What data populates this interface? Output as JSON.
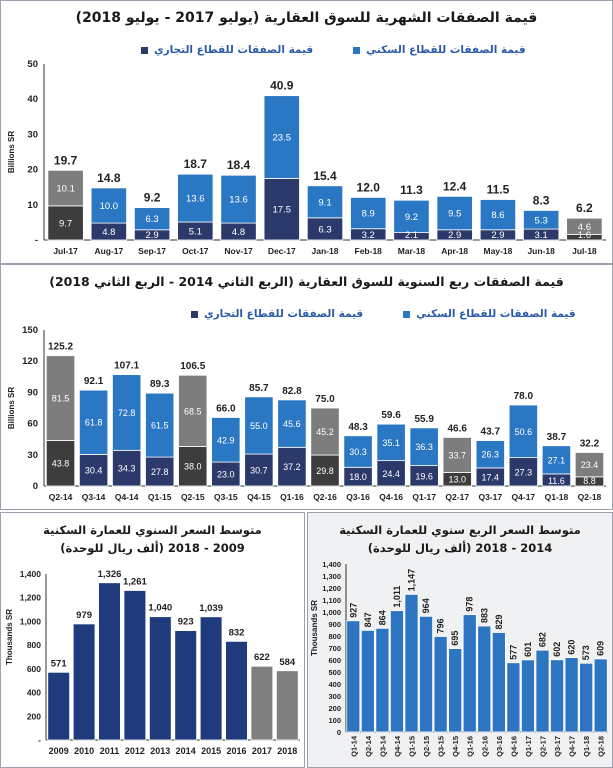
{
  "colors": {
    "commercial": "#2b3a6b",
    "residential": "#2a78c4",
    "other": "#7d7d7d",
    "navy": "#1f3b7e",
    "blue": "#2d74c1",
    "grey_bar": "#7f7f7f"
  },
  "chart_data": [
    {
      "type": "bar",
      "stacked": true,
      "title": "قيمة الصفقات الشهرية للسوق العقارية (يوليو 2017 - يوليو 2018)",
      "ylabel": "Billions SR",
      "ylim": [
        0,
        50
      ],
      "yticks": [
        "-",
        "10",
        "20",
        "30",
        "40",
        "50"
      ],
      "legend": [
        "قيمة الصفقات للقطاع التجاري",
        "قيمة الصفقات للقطاع السكني"
      ],
      "categories": [
        "Jul-17",
        "Aug-17",
        "Sep-17",
        "Oct-17",
        "Nov-17",
        "Dec-17",
        "Jan-18",
        "Feb-18",
        "Mar-18",
        "Apr-18",
        "May-18",
        "Jun-18",
        "Jul-18"
      ],
      "totals": [
        19.7,
        14.8,
        9.2,
        18.7,
        18.4,
        40.9,
        15.4,
        12.0,
        11.3,
        12.4,
        11.5,
        8.3,
        6.2
      ],
      "totals_label": [
        "19.7",
        "14.8",
        "9.2",
        "18.7",
        "18.4",
        "40.9",
        "15.4",
        "12.0",
        "11.3",
        "12.4",
        "11.5",
        "8.3",
        "6.2"
      ],
      "series": [
        {
          "name": "قيمة الصفقات للقطاع التجاري",
          "values": [
            9.7,
            4.8,
            2.9,
            5.1,
            4.8,
            17.5,
            6.3,
            3.2,
            2.1,
            2.9,
            2.9,
            3.1,
            1.6
          ]
        },
        {
          "name": "قيمة الصفقات للقطاع السكني",
          "values": [
            10.1,
            10.0,
            6.3,
            13.6,
            13.6,
            23.5,
            9.1,
            8.9,
            9.2,
            9.5,
            8.6,
            5.3,
            4.6
          ]
        }
      ],
      "grey_categories": [
        "Jul-17",
        "Jul-18"
      ]
    },
    {
      "type": "bar",
      "stacked": true,
      "title": "قيمة الصفقات ربع السنوية للسوق العقارية (الربع الثاني 2014 - الربع الثاني 2018)",
      "ylabel": "Billions SR",
      "ylim": [
        0,
        150
      ],
      "yticks": [
        "0",
        "30",
        "60",
        "90",
        "120",
        "150"
      ],
      "legend": [
        "قيمة الصفقات للقطاع التجاري",
        "قيمة الصفقات للقطاع السكني"
      ],
      "categories": [
        "Q2-14",
        "Q3-14",
        "Q4-14",
        "Q1-15",
        "Q2-15",
        "Q3-15",
        "Q4-15",
        "Q1-16",
        "Q2-16",
        "Q3-16",
        "Q4-16",
        "Q1-17",
        "Q2-17",
        "Q3-17",
        "Q4-17",
        "Q1-18",
        "Q2-18"
      ],
      "totals": [
        125.2,
        92.1,
        107.1,
        89.3,
        106.5,
        66.0,
        85.7,
        82.8,
        75.0,
        48.3,
        59.6,
        55.9,
        46.6,
        43.7,
        78.0,
        38.7,
        32.2
      ],
      "totals_label": [
        "125.2",
        "92.1",
        "107.1",
        "89.3",
        "106.5",
        "66.0",
        "85.7",
        "82.8",
        "75.0",
        "48.3",
        "59.6",
        "55.9",
        "46.6",
        "43.7",
        "78.0",
        "38.7",
        "32.2"
      ],
      "series": [
        {
          "name": "قيمة الصفقات للقطاع التجاري",
          "values": [
            43.8,
            30.4,
            34.3,
            27.8,
            38.0,
            23.0,
            30.7,
            37.2,
            29.8,
            18.0,
            24.4,
            19.6,
            13.0,
            17.4,
            27.3,
            11.6,
            8.8
          ]
        },
        {
          "name": "قيمة الصفقات للقطاع السكني",
          "values": [
            81.5,
            61.8,
            72.8,
            61.5,
            68.5,
            42.9,
            55.0,
            45.6,
            45.2,
            30.3,
            35.1,
            36.3,
            33.7,
            26.3,
            50.6,
            27.1,
            23.4
          ]
        }
      ],
      "grey_categories": [
        "Q2-14",
        "Q2-15",
        "Q2-16",
        "Q2-17",
        "Q2-18"
      ]
    },
    {
      "type": "bar",
      "title": "متوسط السعر السنوي للعمارة السكنية",
      "subtitle": "(ألف ريال للوحدة) 2009 - 2018",
      "ylabel": "Thousands SR",
      "ylim": [
        0,
        1400
      ],
      "yticks": [
        "-",
        "200",
        "400",
        "600",
        "800",
        "1,000",
        "1,200",
        "1,400"
      ],
      "categories": [
        "2009",
        "2010",
        "2011",
        "2012",
        "2013",
        "2014",
        "2015",
        "2016",
        "2017",
        "2018"
      ],
      "values": [
        571,
        979,
        1326,
        1261,
        1040,
        923,
        1039,
        832,
        622,
        584
      ],
      "value_labels": [
        "571",
        "979",
        "1,326",
        "1,261",
        "1,040",
        "923",
        "1,039",
        "832",
        "622",
        "584"
      ],
      "grey_categories": [
        "2017",
        "2018"
      ]
    },
    {
      "type": "bar",
      "title": "متوسط السعر الربع سنوي للعمارة السكنية",
      "subtitle": "(ألف ريال للوحدة) 2014 - 2018",
      "ylabel": "Thousands SR",
      "ylim": [
        0,
        1400
      ],
      "yticks": [
        "0",
        "100",
        "200",
        "300",
        "400",
        "500",
        "600",
        "700",
        "800",
        "900",
        "1,000",
        "1,100",
        "1,200",
        "1,300",
        "1,400"
      ],
      "categories": [
        "Q1-14",
        "Q2-14",
        "Q3-14",
        "Q4-14",
        "Q1-15",
        "Q2-15",
        "Q3-15",
        "Q4-15",
        "Q1-16",
        "Q2-16",
        "Q3-16",
        "Q4-16",
        "Q1-17",
        "Q2-17",
        "Q3-17",
        "Q4-17",
        "Q1-18",
        "Q2-18"
      ],
      "values": [
        927,
        847,
        864,
        1011,
        1147,
        964,
        796,
        695,
        978,
        883,
        829,
        577,
        601,
        682,
        602,
        620,
        573,
        609
      ],
      "value_labels": [
        "927",
        "847",
        "864",
        "1,011",
        "1,147",
        "964",
        "796",
        "695",
        "978",
        "883",
        "829",
        "577",
        "601",
        "682",
        "602",
        "620",
        "573",
        "609"
      ]
    }
  ]
}
